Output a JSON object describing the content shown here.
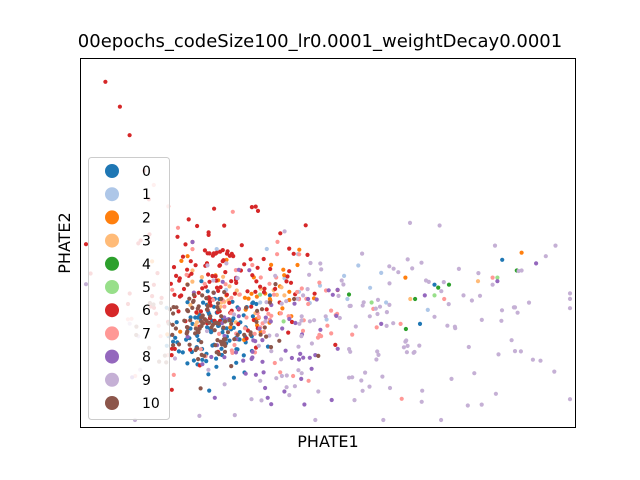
{
  "chart_data": {
    "type": "scatter",
    "title": "00epochs_codeSize100_lr0.0001_weightDecay0.0001",
    "xlabel": "PHATE1",
    "ylabel": "PHATE2",
    "xlim": [
      0,
      100
    ],
    "ylim": [
      0,
      100
    ],
    "grid": false,
    "legend": {
      "position": "center-left"
    },
    "series": [
      {
        "name": "0",
        "color": "#1f77b4",
        "centroid": [
          27,
          24
        ],
        "spread": [
          5,
          6
        ],
        "count": 90,
        "points": [
          [
            18,
            22
          ],
          [
            22,
            27
          ],
          [
            26,
            25
          ],
          [
            28,
            20
          ],
          [
            31,
            23
          ],
          [
            24,
            29
          ],
          [
            33,
            26
          ],
          [
            20,
            19
          ],
          [
            86,
            45
          ],
          [
            72,
            38
          ],
          [
            69,
            27
          ],
          [
            38,
            35
          ]
        ]
      },
      {
        "name": "1",
        "color": "#aec7e8",
        "centroid": [
          55,
          35
        ],
        "spread": [
          15,
          6
        ],
        "count": 12,
        "points": [
          [
            36,
            33
          ],
          [
            44,
            36
          ],
          [
            54,
            34
          ],
          [
            62,
            33
          ],
          [
            27,
            48
          ]
        ]
      },
      {
        "name": "2",
        "color": "#ff7f0e",
        "centroid": [
          32,
          36
        ],
        "spread": [
          8,
          8
        ],
        "count": 35,
        "points": [
          [
            25,
            44
          ],
          [
            29,
            35
          ],
          [
            33,
            31
          ],
          [
            38,
            34
          ],
          [
            42,
            36
          ],
          [
            66,
            40
          ],
          [
            90,
            47
          ],
          [
            21,
            46
          ]
        ]
      },
      {
        "name": "3",
        "color": "#ffbb78",
        "centroid": [
          30,
          34
        ],
        "spread": [
          8,
          6
        ],
        "count": 18,
        "points": [
          [
            22,
            42
          ],
          [
            28,
            33
          ],
          [
            35,
            30
          ],
          [
            41,
            35
          ],
          [
            67,
            34
          ],
          [
            81,
            39
          ]
        ]
      },
      {
        "name": "4",
        "color": "#2ca02c",
        "centroid": [
          68,
          33
        ],
        "spread": [
          15,
          6
        ],
        "count": 3,
        "points": [
          [
            68,
            34
          ],
          [
            89,
            42
          ],
          [
            75,
            38
          ]
        ]
      },
      {
        "name": "5",
        "color": "#98df8a",
        "centroid": [
          62,
          33
        ],
        "spread": [
          15,
          6
        ],
        "count": 3,
        "points": [
          [
            59,
            33
          ],
          [
            72,
            35
          ],
          [
            85,
            40
          ]
        ]
      },
      {
        "name": "6",
        "color": "#d62728",
        "centroid": [
          27,
          39
        ],
        "spread": [
          9,
          9
        ],
        "count": 140,
        "points": [
          [
            4,
            95
          ],
          [
            7,
            88
          ],
          [
            9,
            80
          ],
          [
            12,
            70
          ],
          [
            13,
            62
          ],
          [
            22,
            50
          ],
          [
            25,
            44
          ],
          [
            30,
            39
          ],
          [
            35,
            36
          ],
          [
            40,
            33
          ],
          [
            44,
            34
          ],
          [
            32,
            42
          ],
          [
            27,
            47
          ],
          [
            24,
            37
          ]
        ]
      },
      {
        "name": "7",
        "color": "#ff9896",
        "centroid": [
          36,
          29
        ],
        "spread": [
          13,
          9
        ],
        "count": 70,
        "points": [
          [
            14,
            66
          ],
          [
            17,
            60
          ],
          [
            19,
            54
          ],
          [
            22,
            48
          ],
          [
            30,
            30
          ],
          [
            36,
            26
          ],
          [
            45,
            28
          ],
          [
            55,
            24
          ],
          [
            65,
            27
          ],
          [
            74,
            34
          ],
          [
            84,
            40
          ],
          [
            46,
            11
          ],
          [
            39,
            16
          ]
        ]
      },
      {
        "name": "8",
        "color": "#9467bd",
        "centroid": [
          36,
          21
        ],
        "spread": [
          10,
          10
        ],
        "count": 60,
        "points": [
          [
            33,
            13
          ],
          [
            37,
            9
          ],
          [
            41,
            8
          ],
          [
            31,
            19
          ],
          [
            44,
            17
          ],
          [
            52,
            20
          ],
          [
            61,
            27
          ],
          [
            70,
            35
          ],
          [
            85,
            39
          ],
          [
            93,
            44
          ],
          [
            22,
            50
          ]
        ]
      },
      {
        "name": "9",
        "color": "#c5b0d5",
        "centroid": [
          60,
          26
        ],
        "spread": [
          22,
          12
        ],
        "count": 140,
        "points": [
          [
            36,
            11
          ],
          [
            42,
            7
          ],
          [
            48,
            8
          ],
          [
            55,
            12
          ],
          [
            60,
            17
          ],
          [
            66,
            22
          ],
          [
            72,
            29
          ],
          [
            78,
            35
          ],
          [
            84,
            38
          ],
          [
            90,
            42
          ],
          [
            95,
            46
          ],
          [
            97,
            49
          ],
          [
            29,
            44
          ],
          [
            25,
            25
          ]
        ]
      },
      {
        "name": "10",
        "color": "#8c564b",
        "centroid": [
          25,
          26
        ],
        "spread": [
          7,
          6
        ],
        "count": 100,
        "points": [
          [
            18,
            21
          ],
          [
            21,
            26
          ],
          [
            25,
            31
          ],
          [
            30,
            27
          ],
          [
            34,
            24
          ],
          [
            24,
            35
          ],
          [
            38,
            33
          ],
          [
            43,
            34
          ],
          [
            21,
            38
          ],
          [
            48,
            18
          ],
          [
            27,
            19
          ]
        ]
      }
    ]
  }
}
